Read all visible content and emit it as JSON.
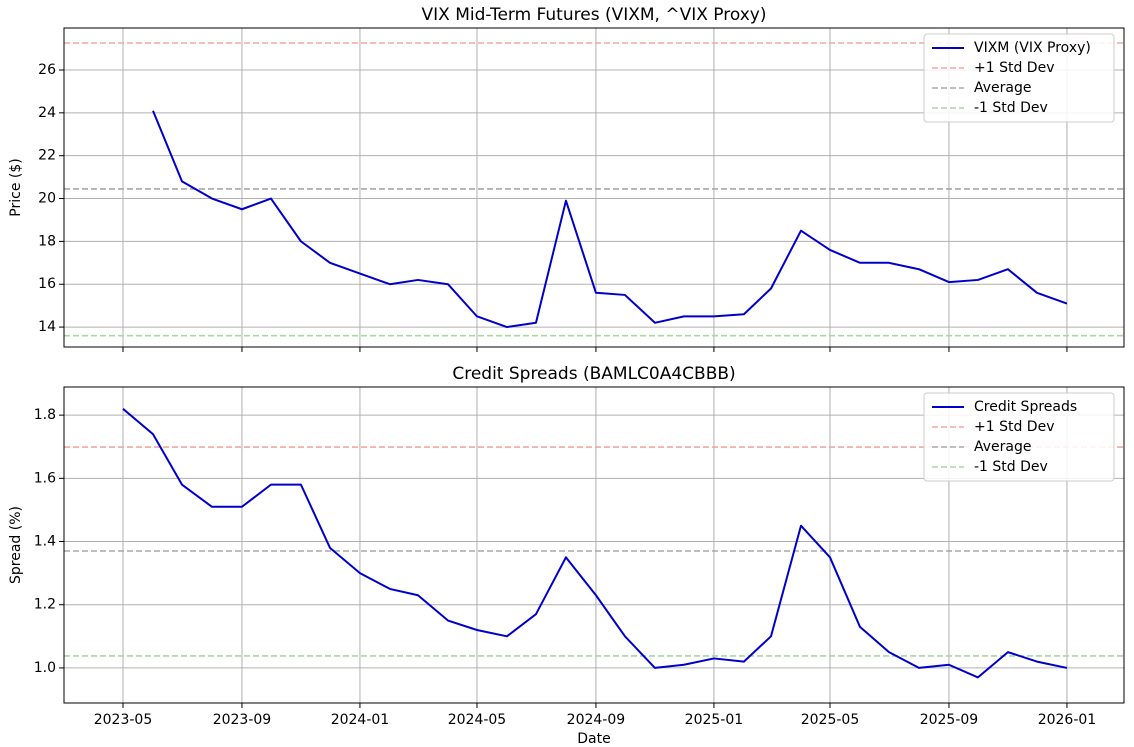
{
  "chart_data": [
    {
      "type": "line",
      "title": "VIX Mid-Term Futures (VIXM, ^VIX Proxy)",
      "ylabel": "Price ($)",
      "x": [
        "2023-06",
        "2023-07",
        "2023-08",
        "2023-09",
        "2023-10",
        "2023-11",
        "2023-12",
        "2024-01",
        "2024-02",
        "2024-03",
        "2024-04",
        "2024-05",
        "2024-06",
        "2024-07",
        "2024-08",
        "2024-09",
        "2024-10",
        "2024-11",
        "2024-12",
        "2025-01",
        "2025-02",
        "2025-03",
        "2025-04",
        "2025-05",
        "2025-06",
        "2025-07",
        "2025-08",
        "2025-09",
        "2025-10",
        "2025-11",
        "2025-12",
        "2026-01"
      ],
      "series": [
        {
          "name": "VIXM (VIX Proxy)",
          "color": "#0000cc",
          "values": [
            24.1,
            20.8,
            20.0,
            19.5,
            20.0,
            18.0,
            17.0,
            16.5,
            16.0,
            16.2,
            16.0,
            14.5,
            14.0,
            14.2,
            19.9,
            15.6,
            15.5,
            14.2,
            14.5,
            14.5,
            14.6,
            15.8,
            18.5,
            17.6,
            17.0,
            17.0,
            16.7,
            16.1,
            16.2,
            16.7,
            15.6,
            15.1
          ]
        }
      ],
      "hlines": [
        {
          "name": "+1 Std Dev",
          "value": 27.26,
          "color": "#f2a8a0"
        },
        {
          "name": "Average",
          "value": 20.45,
          "color": "#a8a8a8"
        },
        {
          "name": "-1 Std Dev",
          "value": 13.6,
          "color": "#a8d8a0"
        }
      ],
      "xlim": [
        "2023-03",
        "2026-03"
      ],
      "ylim": [
        13.07,
        27.96
      ],
      "yticks": [
        14,
        16,
        18,
        20,
        22,
        24,
        26
      ],
      "grid": true,
      "legend": "upper right"
    },
    {
      "type": "line",
      "title": "Credit Spreads (BAMLC0A4CBBB)",
      "ylabel": "Spread (%)",
      "xlabel": "Date",
      "x": [
        "2023-05",
        "2023-06",
        "2023-07",
        "2023-08",
        "2023-09",
        "2023-10",
        "2023-11",
        "2023-12",
        "2024-01",
        "2024-02",
        "2024-03",
        "2024-04",
        "2024-05",
        "2024-06",
        "2024-07",
        "2024-08",
        "2024-09",
        "2024-10",
        "2024-11",
        "2024-12",
        "2025-01",
        "2025-02",
        "2025-03",
        "2025-04",
        "2025-05",
        "2025-06",
        "2025-07",
        "2025-08",
        "2025-09",
        "2025-10",
        "2025-11",
        "2025-12",
        "2026-01"
      ],
      "series": [
        {
          "name": "Credit Spreads",
          "color": "#0000cc",
          "values": [
            1.82,
            1.74,
            1.58,
            1.51,
            1.51,
            1.58,
            1.58,
            1.38,
            1.3,
            1.25,
            1.23,
            1.15,
            1.12,
            1.1,
            1.17,
            1.35,
            1.23,
            1.1,
            1.0,
            1.01,
            1.03,
            1.02,
            1.1,
            1.45,
            1.35,
            1.13,
            1.05,
            1.0,
            1.01,
            0.97,
            1.05,
            1.02,
            1.0
          ]
        }
      ],
      "hlines": [
        {
          "name": "+1 Std Dev",
          "value": 1.699,
          "color": "#f2a8a0"
        },
        {
          "name": "Average",
          "value": 1.37,
          "color": "#a8a8a8"
        },
        {
          "name": "-1 Std Dev",
          "value": 1.038,
          "color": "#a8d8a0"
        }
      ],
      "xlim": [
        "2023-03",
        "2026-03"
      ],
      "xticks": [
        "2023-05",
        "2023-09",
        "2024-01",
        "2024-05",
        "2024-09",
        "2025-01",
        "2025-05",
        "2025-09",
        "2026-01"
      ],
      "ylim": [
        0.889,
        1.889
      ],
      "yticks": [
        {
          "value": 1,
          "label": "1.0"
        },
        1.2,
        1.4,
        1.6,
        1.8
      ],
      "grid": true,
      "legend": "upper right"
    }
  ]
}
